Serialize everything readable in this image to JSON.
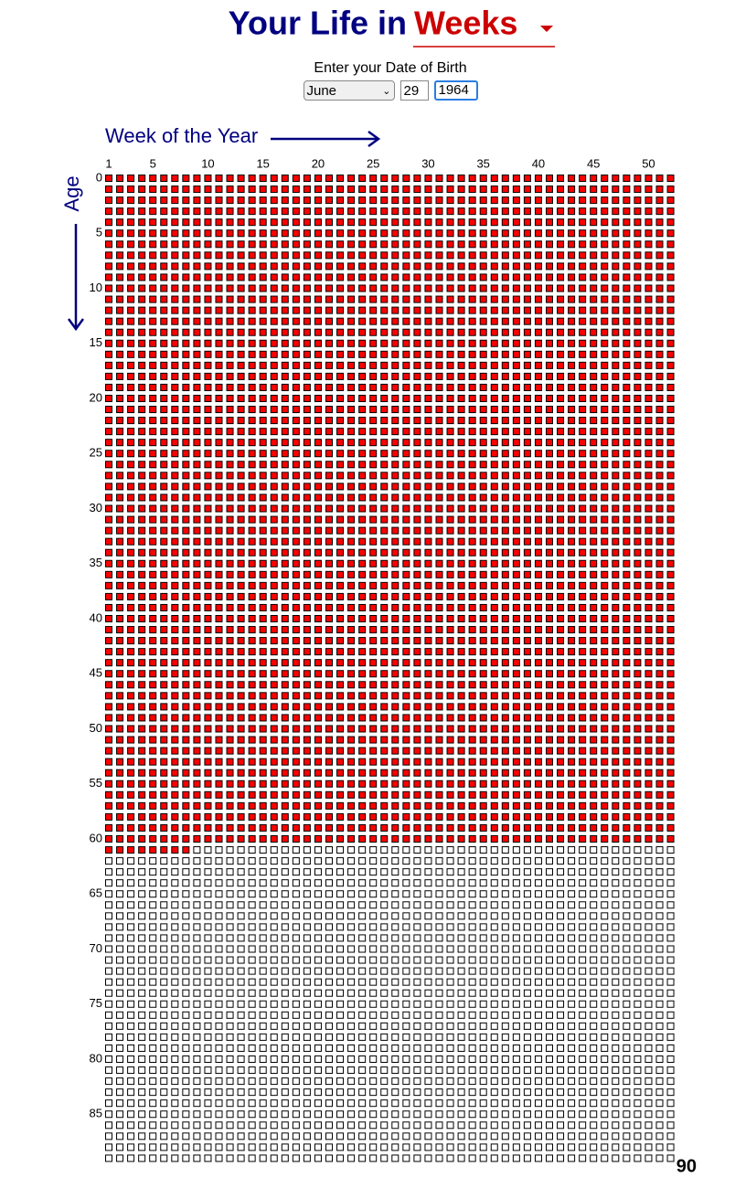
{
  "header": {
    "title_prefix": "Your Life in",
    "title_unit": "Weeks"
  },
  "form": {
    "label": "Enter your Date of Birth",
    "month": "June",
    "day": "29",
    "year": "1964"
  },
  "axes": {
    "x_label": "Week of the Year",
    "y_label": "Age",
    "x_ticks": [
      1,
      5,
      10,
      15,
      20,
      25,
      30,
      35,
      40,
      45,
      50
    ],
    "y_ticks": [
      0,
      5,
      10,
      15,
      20,
      25,
      30,
      35,
      40,
      45,
      50,
      55,
      60,
      65,
      70,
      75,
      80,
      85
    ]
  },
  "grid": {
    "weeks_per_year": 52,
    "total_years": 90,
    "weeks_lived": 3180,
    "lived_color": "#ff0000"
  }
}
